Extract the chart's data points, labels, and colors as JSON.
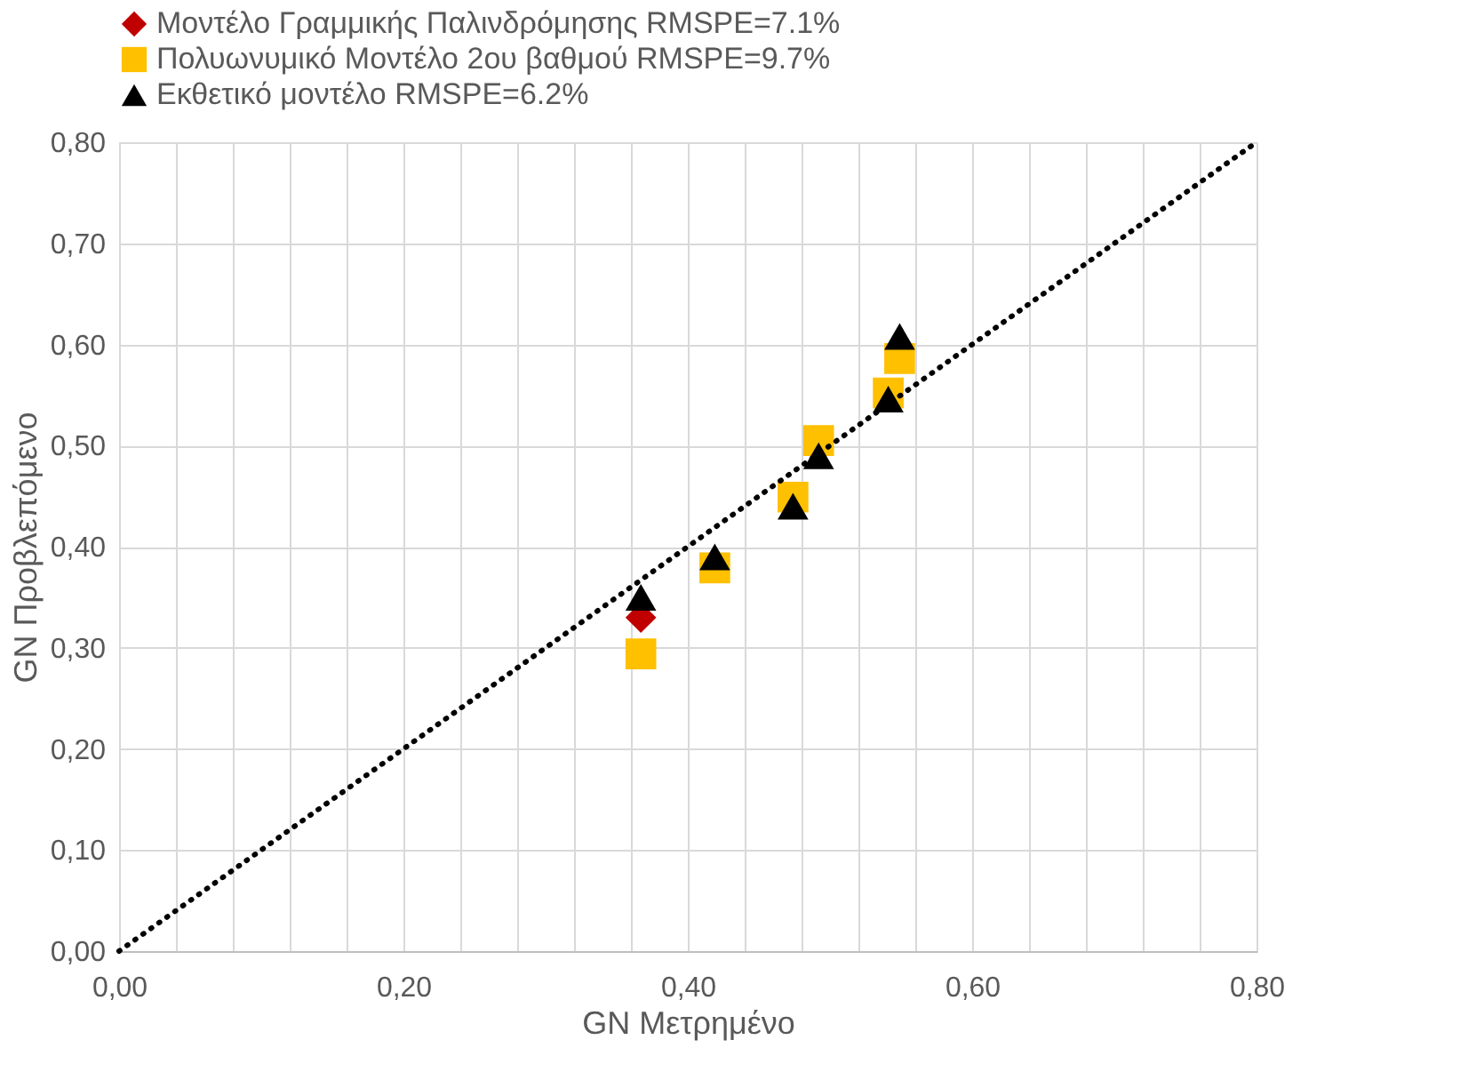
{
  "chart_data": {
    "type": "scatter",
    "xlabel": "GN Μετρημένο",
    "ylabel": "GN Προβλεπόμενο",
    "x": [
      0.367,
      0.419,
      0.474,
      0.492,
      0.541,
      0.549
    ],
    "series": [
      {
        "name": "Μοντέλο Γραμμικής Παλινδρόμησης RMSPE=7.1%",
        "color": "#c00000",
        "marker": "diamond",
        "values": [
          0.33,
          null,
          null,
          null,
          null,
          null
        ]
      },
      {
        "name": "Πολυωνυμικό Μοντέλο 2ου βαθμού RMSPE=9.7%",
        "color": "#ffc000",
        "marker": "square",
        "values": [
          0.294,
          0.379,
          0.449,
          0.505,
          0.552,
          0.586
        ]
      },
      {
        "name": "Εκθετικό μοντέλο RMSPE=6.2%",
        "color": "#000000",
        "marker": "triangle",
        "values": [
          0.35,
          0.39,
          0.44,
          0.49,
          0.546,
          0.608
        ]
      },
      {
        "type": "line",
        "color": "#000000",
        "line_style": "dotted",
        "marker": "none",
        "x": [
          0,
          0.8
        ],
        "values": [
          0,
          0.8
        ]
      }
    ],
    "xlim": [
      0,
      0.8
    ],
    "ylim": [
      0,
      0.8
    ],
    "xticks": [
      {
        "value": 0,
        "label": "0,00"
      },
      {
        "value": 0.04,
        "label": null
      },
      {
        "value": 0.08,
        "label": null
      },
      {
        "value": 0.12,
        "label": null
      },
      {
        "value": 0.16,
        "label": null
      },
      {
        "value": 0.2,
        "label": "0,20"
      },
      {
        "value": 0.24,
        "label": null
      },
      {
        "value": 0.28,
        "label": null
      },
      {
        "value": 0.32,
        "label": null
      },
      {
        "value": 0.36,
        "label": null
      },
      {
        "value": 0.4,
        "label": "0,40"
      },
      {
        "value": 0.44,
        "label": null
      },
      {
        "value": 0.48,
        "label": null
      },
      {
        "value": 0.52,
        "label": null
      },
      {
        "value": 0.56,
        "label": null
      },
      {
        "value": 0.6,
        "label": "0,60"
      },
      {
        "value": 0.64,
        "label": null
      },
      {
        "value": 0.68,
        "label": null
      },
      {
        "value": 0.72,
        "label": null
      },
      {
        "value": 0.76,
        "label": null
      },
      {
        "value": 0.8,
        "label": "0,80"
      }
    ],
    "yticks": [
      {
        "value": 0,
        "label": "0,00"
      },
      {
        "value": 0.1,
        "label": "0,10"
      },
      {
        "value": 0.2,
        "label": "0,20"
      },
      {
        "value": 0.3,
        "label": "0,30"
      },
      {
        "value": 0.4,
        "label": "0,40"
      },
      {
        "value": 0.5,
        "label": "0,50"
      },
      {
        "value": 0.6,
        "label": "0,60"
      },
      {
        "value": 0.7,
        "label": "0,70"
      },
      {
        "value": 0.8,
        "label": "0,80"
      }
    ],
    "grid": true,
    "legend": "top"
  }
}
